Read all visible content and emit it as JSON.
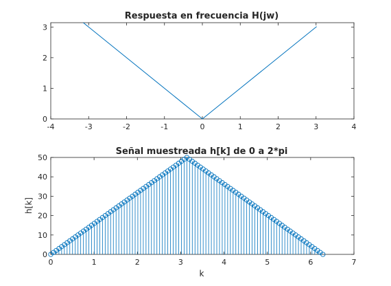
{
  "chart_data": [
    {
      "type": "line",
      "title": "Respuesta en frecuencia H(jw)",
      "xlabel": "",
      "ylabel": "",
      "xlim": [
        -4,
        4
      ],
      "ylim": [
        0,
        3.1416
      ],
      "xticks": [
        -4,
        -3,
        -2,
        -1,
        0,
        1,
        2,
        3,
        4
      ],
      "yticks": [
        0,
        1,
        2,
        3
      ],
      "grid": false,
      "color": "#0072bd",
      "series": [
        {
          "x": [
            -3.1416,
            0,
            3.0159
          ],
          "y": [
            3.1416,
            0,
            3.0159
          ]
        }
      ]
    },
    {
      "type": "stem",
      "title": "Señal muestreada h[k] de 0 a 2*pi",
      "xlabel": "k",
      "ylabel": "h[k]",
      "xlim": [
        0,
        7
      ],
      "ylim": [
        0,
        50
      ],
      "xticks": [
        0,
        1,
        2,
        3,
        4,
        5,
        6,
        7
      ],
      "yticks": [
        0,
        10,
        20,
        30,
        40,
        50
      ],
      "grid": false,
      "color": "#0072bd",
      "samples": 101,
      "x_range": [
        0,
        6.2832
      ],
      "peak": 50,
      "shape": "triangle |k - pi| mirrored, h[k] = 50 - |50 - 50*k/pi|"
    }
  ]
}
